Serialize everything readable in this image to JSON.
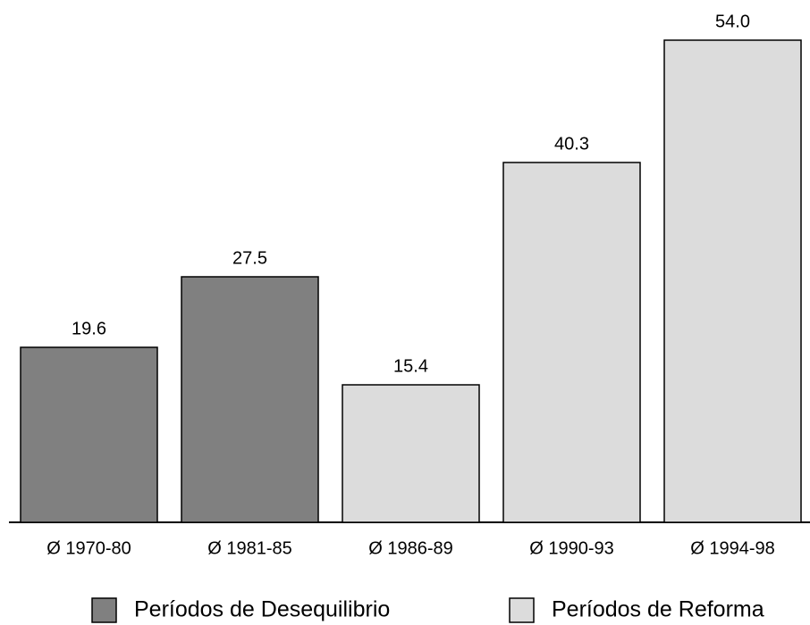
{
  "chart_data": {
    "type": "bar",
    "categories": [
      "Ø 1970-80",
      "Ø 1981-85",
      "Ø 1986-89",
      "Ø 1990-93",
      "Ø 1994-98"
    ],
    "series": [
      {
        "name": "Períodos de Desequilibrio",
        "color": "#808080",
        "values": [
          19.6,
          27.5,
          null,
          null,
          null
        ]
      },
      {
        "name": "Períodos de Reforma",
        "color": "#dcdcdc",
        "values": [
          null,
          null,
          15.4,
          40.3,
          54.0
        ],
        "value_labels": [
          null,
          null,
          "15.4",
          "40.3",
          "54.0"
        ]
      }
    ]
  }
}
